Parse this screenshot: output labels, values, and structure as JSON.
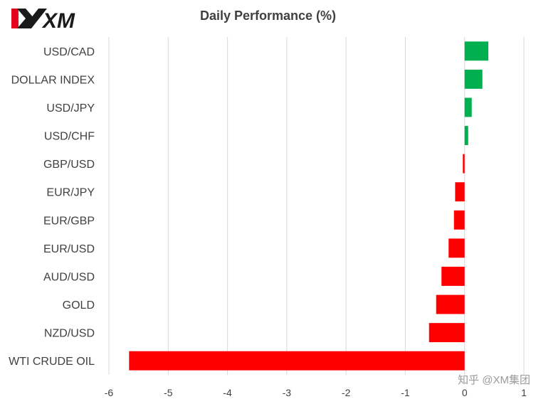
{
  "brand": {
    "logo_text": "XM"
  },
  "watermark": "知乎 @XM集团",
  "chart_data": {
    "type": "bar",
    "orientation": "horizontal",
    "title": "Daily Performance  (%)",
    "xlabel": "",
    "ylabel": "",
    "xlim": [
      -6,
      1
    ],
    "xticks": [
      "-6",
      "-5",
      "-4",
      "-3",
      "-2",
      "-1",
      "0",
      "1"
    ],
    "grid": true,
    "positive_color": "#00b050",
    "negative_color": "#ff0000",
    "categories": [
      "USD/CAD",
      "DOLLAR INDEX",
      "USD/JPY",
      "USD/CHF",
      "GBP/USD",
      "EUR/JPY",
      "EUR/GBP",
      "EUR/USD",
      "AUD/USD",
      "GOLD",
      "NZD/USD",
      "WTI CRUDE OIL"
    ],
    "values": [
      0.4,
      0.3,
      0.12,
      0.06,
      -0.03,
      -0.16,
      -0.18,
      -0.27,
      -0.39,
      -0.48,
      -0.6,
      -5.66
    ]
  }
}
